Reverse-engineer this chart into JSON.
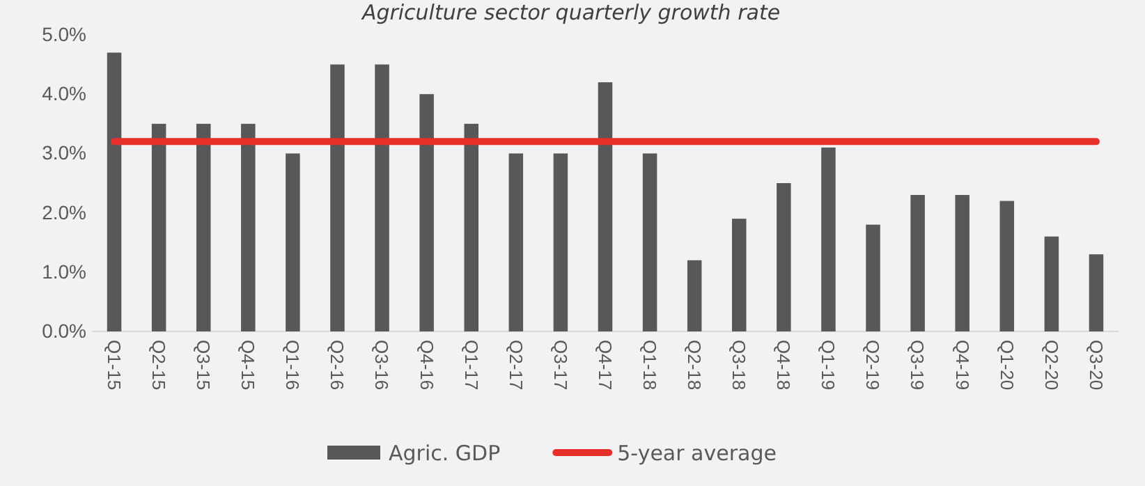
{
  "chart_data": {
    "type": "bar",
    "title": "Agriculture sector quarterly growth rate",
    "categories": [
      "Q1-15",
      "Q2-15",
      "Q3-15",
      "Q4-15",
      "Q1-16",
      "Q2-16",
      "Q3-16",
      "Q4-16",
      "Q1-17",
      "Q2-17",
      "Q3-17",
      "Q4-17",
      "Q1-18",
      "Q2-18",
      "Q3-18",
      "Q4-18",
      "Q1-19",
      "Q2-19",
      "Q3-19",
      "Q4-19",
      "Q1-20",
      "Q2-20",
      "Q3-20"
    ],
    "series": [
      {
        "name": "Agric. GDP",
        "color": "#58585a",
        "values": [
          4.7,
          3.5,
          3.5,
          3.5,
          3.0,
          4.5,
          4.5,
          4.0,
          3.5,
          3.0,
          3.0,
          4.2,
          3.0,
          1.2,
          1.9,
          2.5,
          3.1,
          1.8,
          2.3,
          2.3,
          2.2,
          1.6,
          1.3
        ]
      },
      {
        "name": "5-year average",
        "type": "line",
        "color": "#e8302a",
        "values": [
          3.2,
          3.2,
          3.2,
          3.2,
          3.2,
          3.2,
          3.2,
          3.2,
          3.2,
          3.2,
          3.2,
          3.2,
          3.2,
          3.2,
          3.2,
          3.2,
          3.2,
          3.2,
          3.2,
          3.2,
          3.2,
          3.2,
          3.2
        ]
      }
    ],
    "ylim": [
      0,
      5
    ],
    "yticks": [
      {
        "value": 0,
        "label": "0.0%"
      },
      {
        "value": 1,
        "label": "1.0%"
      },
      {
        "value": 2,
        "label": "2.0%"
      },
      {
        "value": 3,
        "label": "3.0%"
      },
      {
        "value": 4,
        "label": "4.0%"
      },
      {
        "value": 5,
        "label": "5.0%"
      }
    ],
    "grid": false,
    "legend": "bottom",
    "marker": "none",
    "line_style": "solid"
  }
}
